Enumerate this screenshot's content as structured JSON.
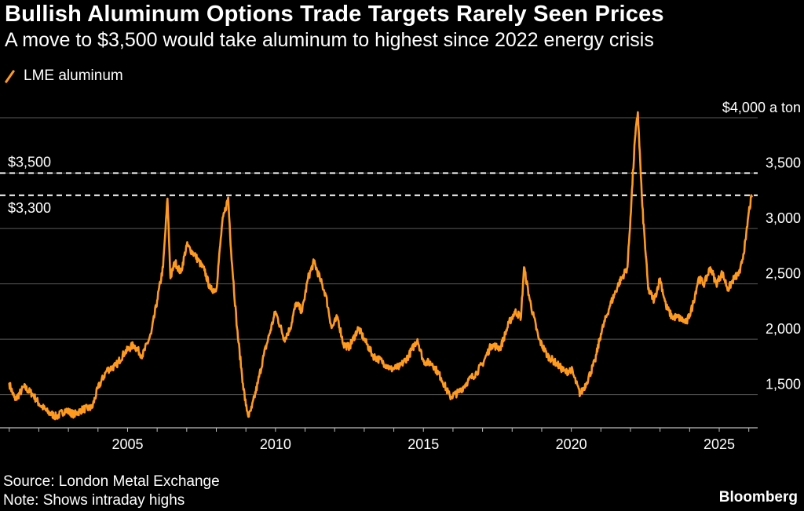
{
  "header": {
    "title": "Bullish Aluminum Options Trade Targets Rarely Seen Prices",
    "subtitle": "A move to $3,500 would take aluminum to highest since 2022 energy crisis"
  },
  "footer": {
    "source": "Source: London Metal Exchange",
    "note": "Note: Shows intraday highs",
    "brand": "Bloomberg"
  },
  "colors": {
    "line": "#ff9a1f",
    "grid": "#5a5a5a",
    "reference": "#ffffff",
    "background": "#000000"
  },
  "chart_data": {
    "type": "line",
    "title": "Bullish Aluminum Options Trade Targets Rarely Seen Prices",
    "subtitle": "A move to $3,500 would take aluminum to highest since 2022 energy crisis",
    "xlabel": "",
    "ylabel": "$ a ton",
    "xlim": [
      2000.9,
      2026.3
    ],
    "ylim": [
      1200,
      4000
    ],
    "y_axis_side": "right",
    "y_ticks": [
      {
        "value": 1500,
        "label": "1,500"
      },
      {
        "value": 2000,
        "label": "2,000"
      },
      {
        "value": 2500,
        "label": "2,500"
      },
      {
        "value": 3000,
        "label": "3,000"
      },
      {
        "value": 3500,
        "label": "3,500"
      },
      {
        "value": 4000,
        "label": "$4,000 a ton"
      }
    ],
    "x_ticks": [
      {
        "value": 2005,
        "label": "2005"
      },
      {
        "value": 2010,
        "label": "2010"
      },
      {
        "value": 2015,
        "label": "2015"
      },
      {
        "value": 2020,
        "label": "2020"
      },
      {
        "value": 2025,
        "label": "2025"
      }
    ],
    "reference_lines": [
      {
        "value": 3500,
        "label": "$3,500",
        "style": "dashed"
      },
      {
        "value": 3300,
        "label": "$3,300",
        "style": "dashed"
      }
    ],
    "series": [
      {
        "name": "LME aluminum",
        "x": [
          2001.0,
          2001.2,
          2001.5,
          2001.8,
          2002.0,
          2002.3,
          2002.6,
          2002.9,
          2003.2,
          2003.5,
          2003.8,
          2004.0,
          2004.3,
          2004.6,
          2004.9,
          2005.2,
          2005.5,
          2005.8,
          2006.0,
          2006.2,
          2006.35,
          2006.45,
          2006.6,
          2006.8,
          2007.0,
          2007.3,
          2007.6,
          2007.8,
          2008.0,
          2008.2,
          2008.4,
          2008.5,
          2008.7,
          2008.9,
          2009.0,
          2009.1,
          2009.2,
          2009.4,
          2009.6,
          2009.8,
          2010.0,
          2010.3,
          2010.5,
          2010.7,
          2010.9,
          2011.1,
          2011.3,
          2011.5,
          2011.7,
          2011.9,
          2012.1,
          2012.3,
          2012.5,
          2012.8,
          2013.0,
          2013.3,
          2013.6,
          2013.9,
          2014.2,
          2014.5,
          2014.8,
          2015.0,
          2015.3,
          2015.6,
          2015.9,
          2016.2,
          2016.5,
          2016.8,
          2017.0,
          2017.3,
          2017.6,
          2017.9,
          2018.1,
          2018.3,
          2018.4,
          2018.6,
          2018.9,
          2019.2,
          2019.5,
          2019.8,
          2020.0,
          2020.3,
          2020.5,
          2020.8,
          2021.0,
          2021.3,
          2021.6,
          2021.9,
          2022.0,
          2022.15,
          2022.25,
          2022.4,
          2022.6,
          2022.8,
          2023.0,
          2023.2,
          2023.4,
          2023.6,
          2023.9,
          2024.1,
          2024.3,
          2024.5,
          2024.7,
          2024.9,
          2025.1,
          2025.3,
          2025.5,
          2025.7,
          2025.9,
          2026.0,
          2026.1
        ],
        "y": [
          1600,
          1450,
          1570,
          1500,
          1420,
          1340,
          1300,
          1360,
          1320,
          1370,
          1380,
          1560,
          1720,
          1760,
          1880,
          1950,
          1850,
          2050,
          2350,
          2650,
          3270,
          2550,
          2700,
          2600,
          2850,
          2750,
          2620,
          2450,
          2450,
          3050,
          3280,
          2800,
          2100,
          1600,
          1400,
          1300,
          1380,
          1600,
          1850,
          2050,
          2250,
          2000,
          2100,
          2330,
          2250,
          2550,
          2700,
          2550,
          2400,
          2100,
          2200,
          1950,
          1930,
          2100,
          2000,
          1850,
          1800,
          1730,
          1750,
          1850,
          2000,
          1800,
          1780,
          1650,
          1480,
          1520,
          1620,
          1700,
          1780,
          1950,
          1920,
          2150,
          2250,
          2200,
          2650,
          2350,
          2000,
          1850,
          1780,
          1700,
          1730,
          1500,
          1600,
          1800,
          2050,
          2300,
          2500,
          2650,
          3100,
          3800,
          4050,
          3200,
          2450,
          2350,
          2550,
          2300,
          2200,
          2200,
          2150,
          2300,
          2550,
          2500,
          2650,
          2500,
          2600,
          2450,
          2550,
          2600,
          2900,
          3150,
          3290
        ]
      }
    ]
  }
}
